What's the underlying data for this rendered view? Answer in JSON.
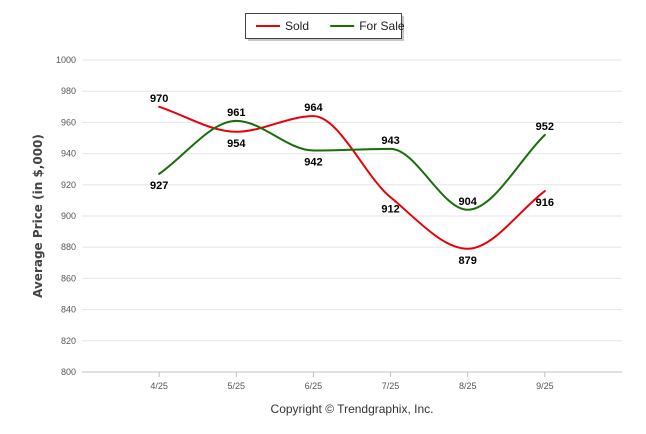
{
  "chart_data": {
    "type": "line",
    "categories": [
      "4/25",
      "5/25",
      "6/25",
      "7/25",
      "8/25",
      "9/25"
    ],
    "series": [
      {
        "name": "Sold",
        "color": "#e8000b",
        "values": [
          970,
          954,
          964,
          912,
          879,
          916
        ]
      },
      {
        "name": "For Sale",
        "color": "#1a6e0a",
        "values": [
          927,
          961,
          942,
          943,
          904,
          952
        ]
      }
    ],
    "ylabel": "Average Price (in $,000)",
    "xlabel": "",
    "ylim": [
      800,
      1000
    ],
    "yticks": [
      800,
      820,
      840,
      860,
      880,
      900,
      920,
      940,
      960,
      980,
      1000
    ],
    "grid": true,
    "legend_position": "top-center",
    "data_labels": true
  },
  "credit": "Copyright © Trendgraphix, Inc."
}
